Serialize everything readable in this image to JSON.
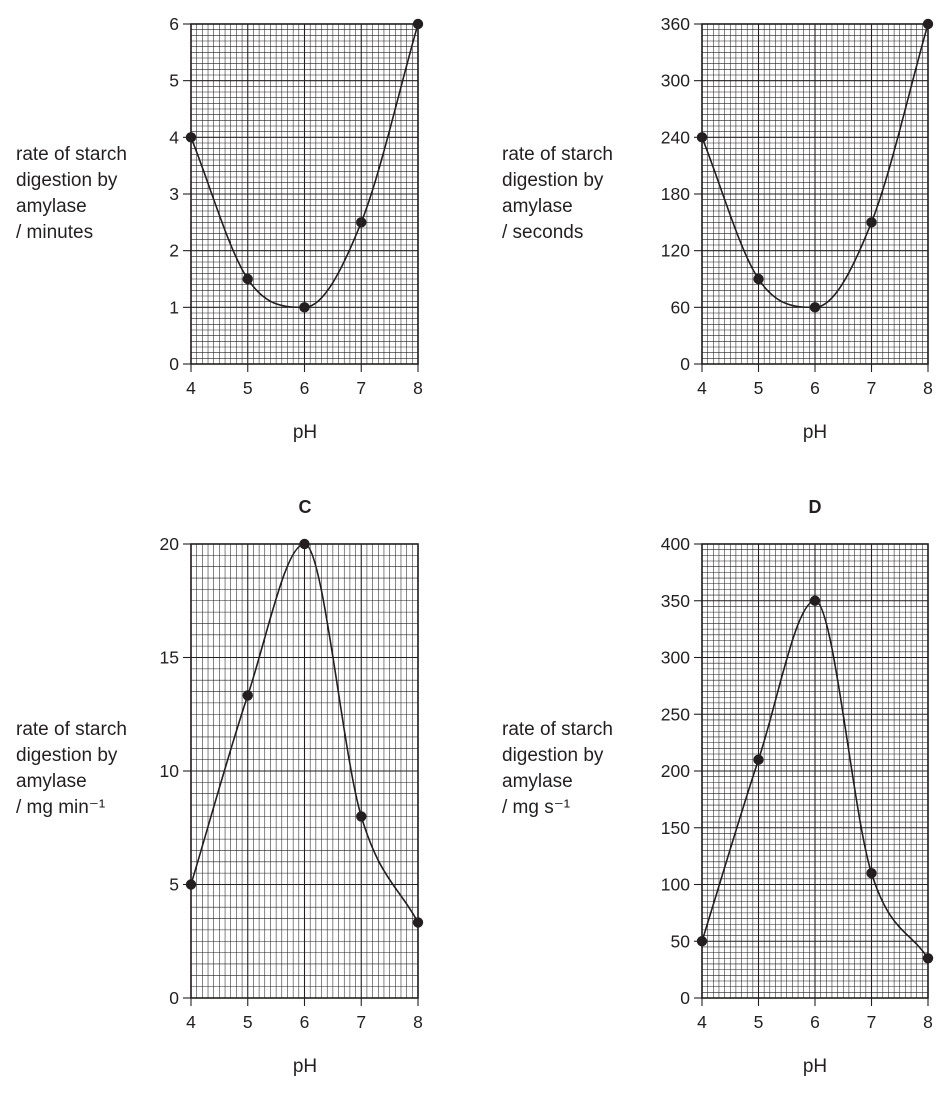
{
  "chart_data": [
    {
      "type": "line",
      "title": "",
      "xlabel": "pH",
      "ylabel_lines": [
        "rate of starch",
        "digestion by",
        "amylase",
        "/ minutes"
      ],
      "x": [
        4,
        5,
        6,
        7,
        8
      ],
      "y": [
        4,
        1.5,
        1,
        2.5,
        6
      ],
      "xlim": [
        4,
        8
      ],
      "ylim": [
        0,
        6
      ],
      "x_ticks": [
        "4",
        "5",
        "6",
        "7",
        "8"
      ],
      "y_ticks": [
        "0",
        "1",
        "2",
        "3",
        "4",
        "5",
        "6"
      ],
      "grid": true
    },
    {
      "type": "line",
      "title": "",
      "xlabel": "pH",
      "ylabel_lines": [
        "rate of starch",
        "digestion by",
        "amylase",
        "/ seconds"
      ],
      "x": [
        4,
        5,
        6,
        7,
        8
      ],
      "y": [
        240,
        90,
        60,
        150,
        360
      ],
      "xlim": [
        4,
        8
      ],
      "ylim": [
        0,
        360
      ],
      "x_ticks": [
        "4",
        "5",
        "6",
        "7",
        "8"
      ],
      "y_ticks": [
        "0",
        "60",
        "120",
        "180",
        "240",
        "300",
        "360"
      ],
      "grid": true
    },
    {
      "type": "line",
      "title": "C",
      "xlabel": "pH",
      "ylabel_lines": [
        "rate of starch",
        "digestion by",
        "amylase",
        "/ mg min⁻¹"
      ],
      "x": [
        4,
        5,
        6,
        7,
        8
      ],
      "y": [
        5,
        13.33,
        20,
        8,
        3.33
      ],
      "xlim": [
        4,
        8
      ],
      "ylim": [
        0,
        20
      ],
      "x_ticks": [
        "4",
        "5",
        "6",
        "7",
        "8"
      ],
      "y_ticks": [
        "0",
        "5",
        "10",
        "15",
        "20"
      ],
      "grid": true
    },
    {
      "type": "line",
      "title": "D",
      "xlabel": "pH",
      "ylabel_lines": [
        "rate of starch",
        "digestion by",
        "amylase",
        "/ mg s⁻¹"
      ],
      "x": [
        4,
        5,
        6,
        7,
        8
      ],
      "y": [
        50,
        210,
        350,
        110,
        35
      ],
      "xlim": [
        4,
        8
      ],
      "ylim": [
        0,
        400
      ],
      "x_ticks": [
        "4",
        "5",
        "6",
        "7",
        "8"
      ],
      "y_ticks": [
        "0",
        "50",
        "100",
        "150",
        "200",
        "250",
        "300",
        "350",
        "400"
      ],
      "grid": true
    }
  ]
}
